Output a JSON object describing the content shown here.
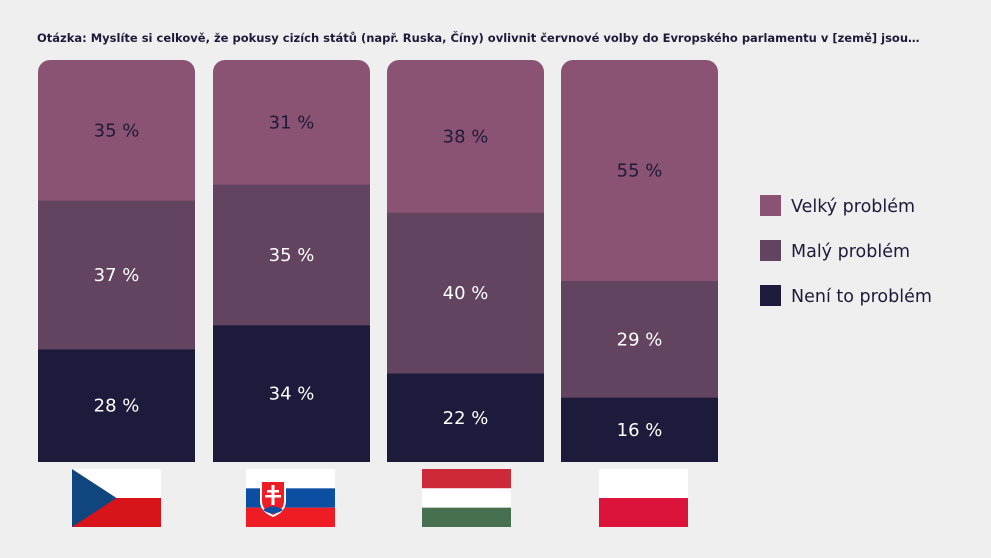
{
  "chart_data": {
    "type": "bar",
    "stacked": true,
    "normalized": true,
    "title": "Otázka: Myslíte si celkově, že pokusy cizích států (např. Ruska, Číny) ovlivnit červnové volby do Evropského parlamentu v [země] jsou…",
    "categories": [
      "Czech Republic",
      "Slovakia",
      "Hungary",
      "Poland"
    ],
    "category_icons": [
      "flag-czech",
      "flag-slovakia",
      "flag-hungary",
      "flag-poland"
    ],
    "unit": "%",
    "ylim": [
      0,
      100
    ],
    "series": [
      {
        "name": "Velký problém",
        "color": "#8b5373",
        "label_color": "#1f1a3a",
        "values": [
          35,
          31,
          38,
          55
        ]
      },
      {
        "name": "Malý problém",
        "color": "#624461",
        "label_color": "#ffffff",
        "values": [
          37,
          35,
          40,
          29
        ]
      },
      {
        "name": "Není to problém",
        "color": "#1c1b3c",
        "label_color": "#ffffff",
        "values": [
          28,
          34,
          22,
          16
        ]
      }
    ],
    "value_labels": [
      [
        "35 %",
        "31 %",
        "38 %",
        "55 %"
      ],
      [
        "37 %",
        "35 %",
        "40 %",
        "29 %"
      ],
      [
        "28 %",
        "34 %",
        "22 %",
        "16 %"
      ]
    ],
    "legend_position": "right",
    "grid": false
  }
}
